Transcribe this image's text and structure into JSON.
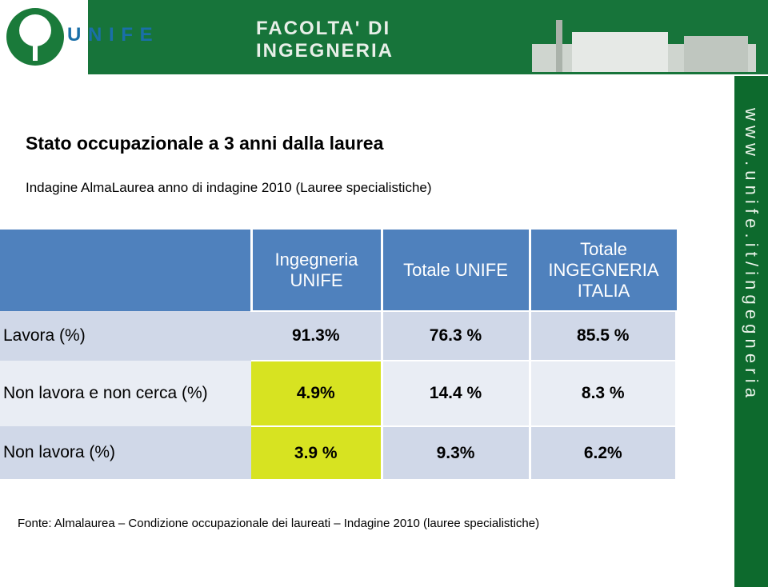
{
  "header": {
    "brand": "U N I F E",
    "faculty_line1": "FACOLTA' DI",
    "faculty_line2": "INGEGNERIA"
  },
  "sidebar": "w w w . u n i f e . i t / i n g e g n e r i a",
  "title": "Stato occupazionale a 3 anni dalla laurea",
  "subtitle": "Indagine AlmaLaurea anno di indagine 2010 (Lauree specialistiche)",
  "table": {
    "columns": [
      "Ingegneria UNIFE",
      "Totale UNIFE",
      "Totale INGEGNERIA ITALIA"
    ],
    "rows": [
      [
        "Lavora (%)",
        "91.3%",
        "76.3 %",
        "85.5 %"
      ],
      [
        "Non lavora e non cerca (%)",
        "4.9%",
        "14.4 %",
        "8.3 %"
      ],
      [
        "Non lavora (%)",
        "3.9 %",
        "9.3%",
        "6.2%"
      ]
    ]
  },
  "footnote": "Fonte: Almalaurea – Condizione occupazionale dei laureati – Indagine 2010 (lauree specialistiche)"
}
